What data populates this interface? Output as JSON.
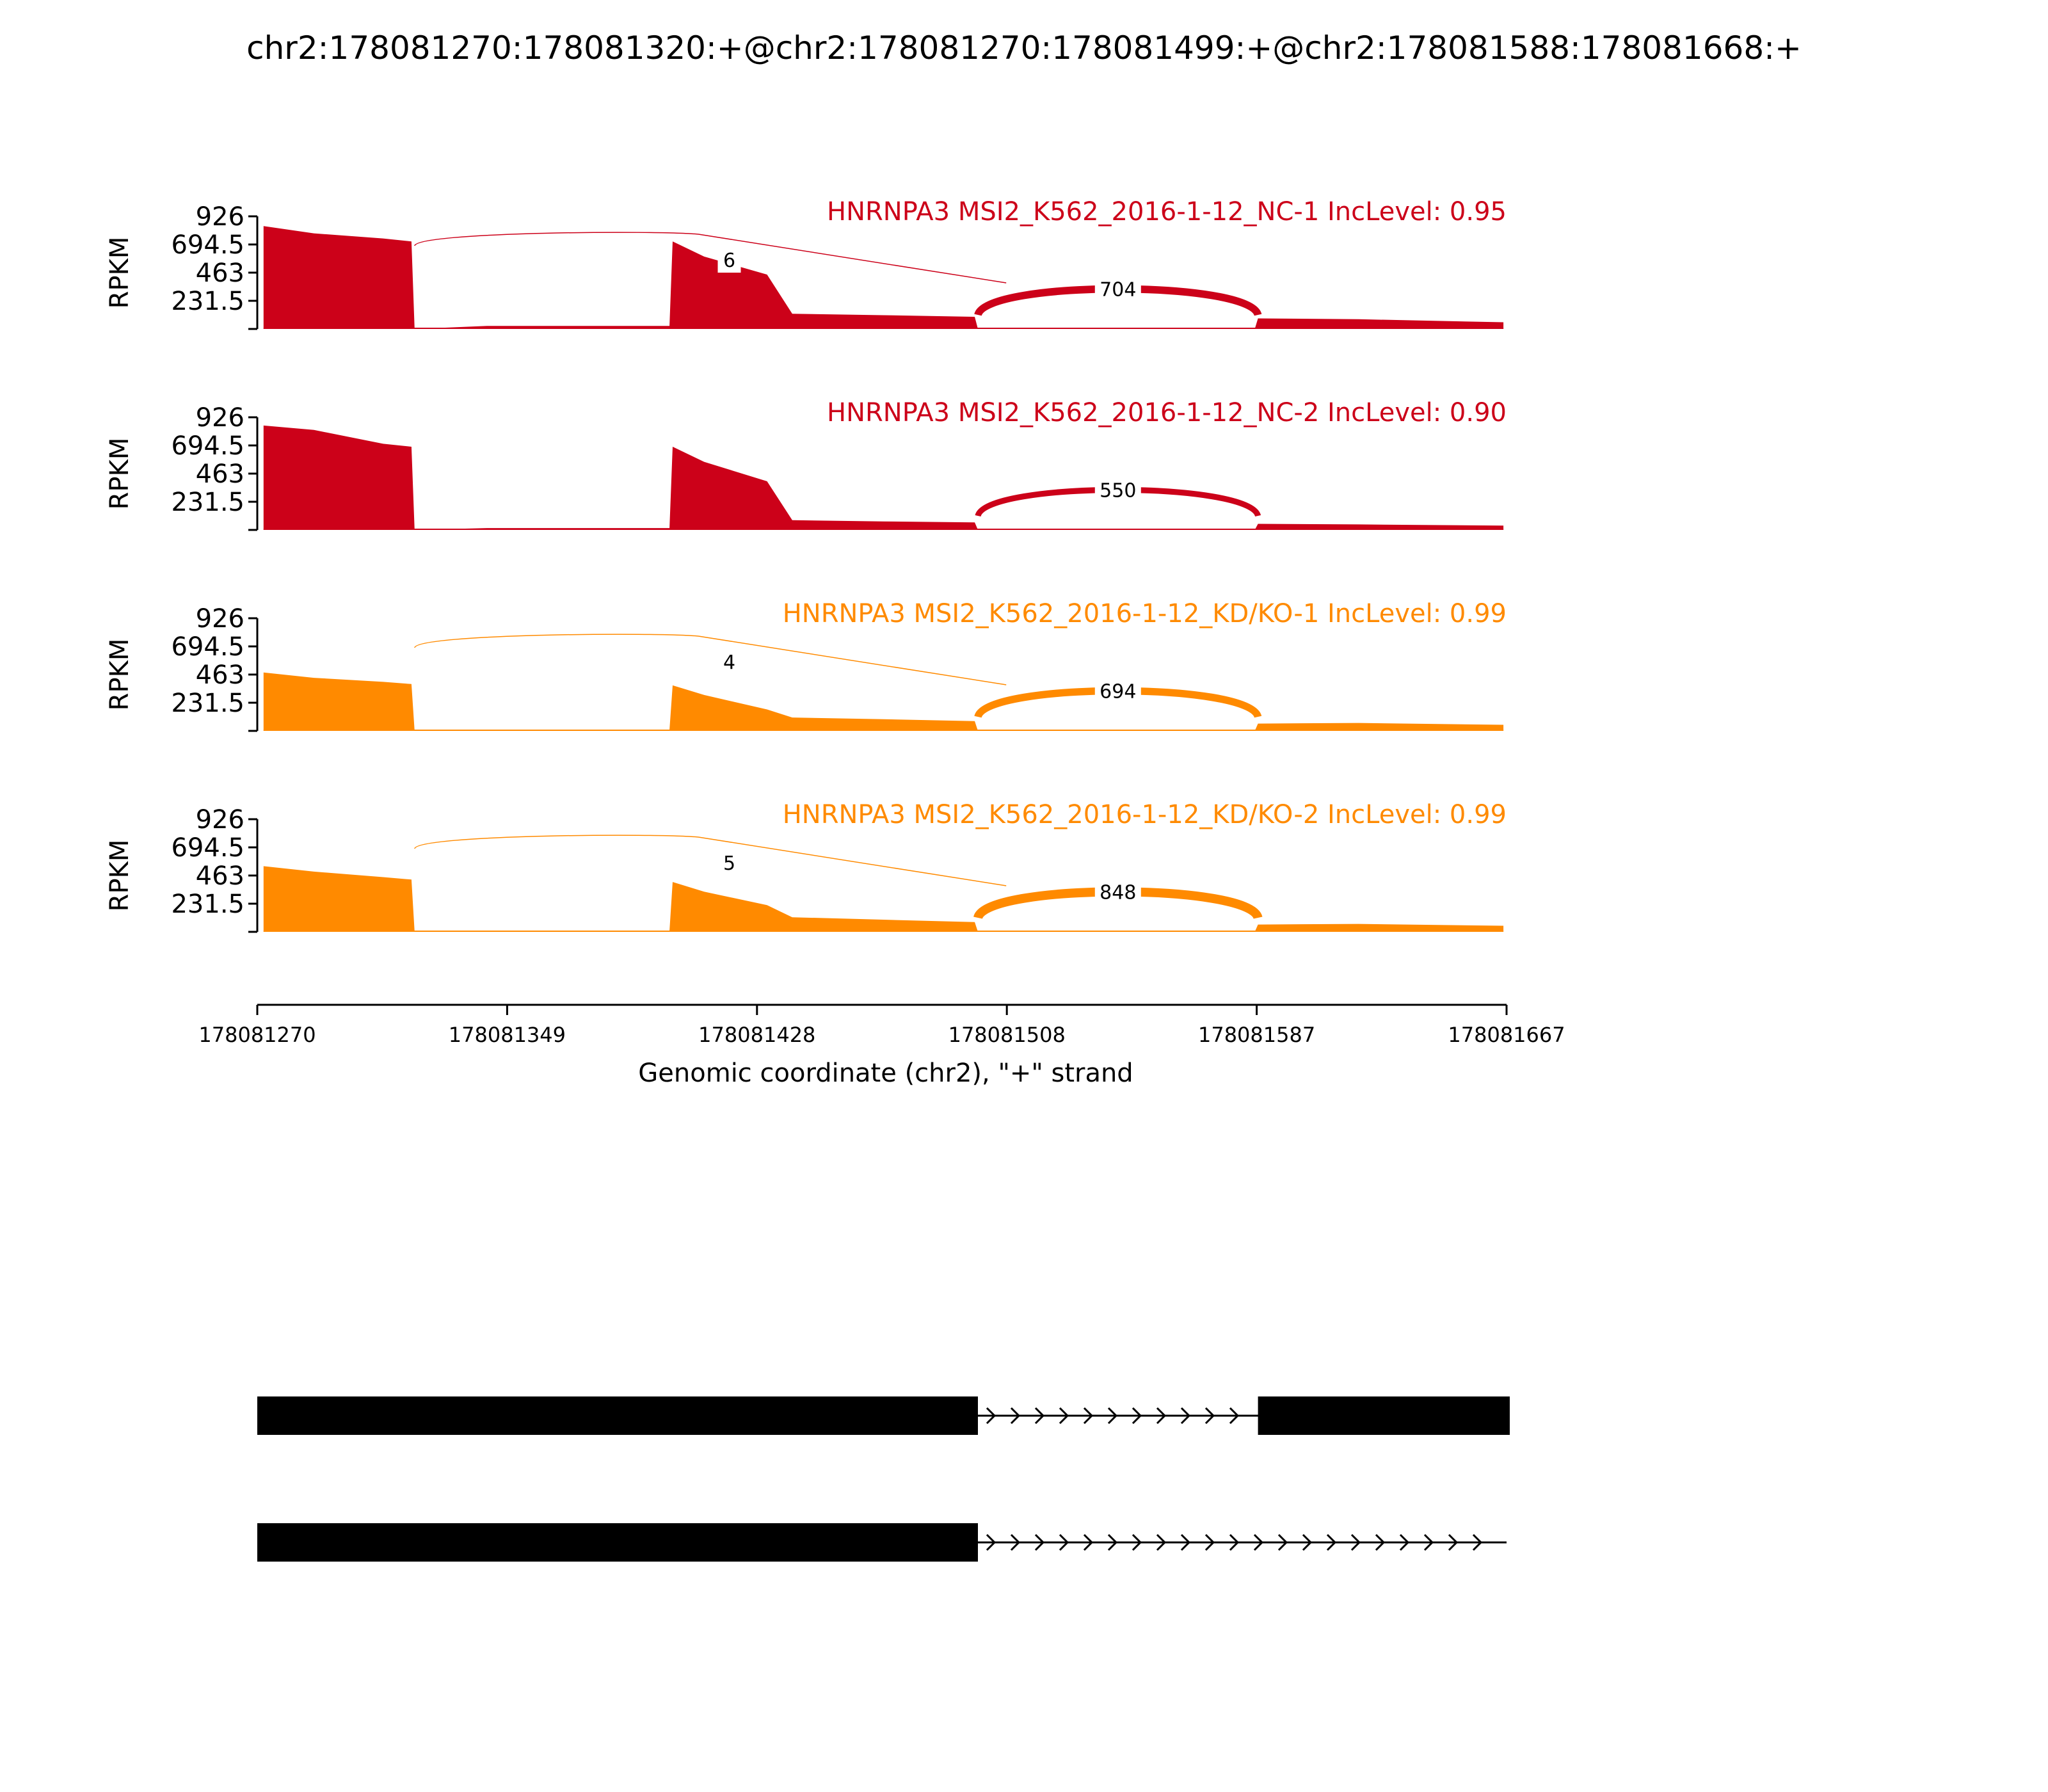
{
  "title": "chr2:178081270:178081320:+@chr2:178081270:178081499:+@chr2:178081588:178081668:+",
  "colors": {
    "NC": "#cc0119",
    "KD": "#ff8a00",
    "axis": "#000000",
    "gene": "#000000"
  },
  "chart_data": {
    "type": "area",
    "title": "chr2:178081270:178081320:+@chr2:178081270:178081499:+@chr2:178081588:178081668:+",
    "ylabel": "RPKM",
    "xlabel": "Genomic coordinate (chr2), \"+\" strand",
    "xlim": [
      178081270,
      178081667
    ],
    "xticks": [
      "178081270",
      "178081349",
      "178081428",
      "178081508",
      "178081587",
      "178081667"
    ],
    "xtick_values": [
      178081270,
      178081349,
      178081428,
      178081508,
      178081587,
      178081667
    ],
    "ylim": [
      0,
      926
    ],
    "yticks": [
      "926",
      "694.5",
      "463",
      "231.5"
    ],
    "ytick_values": [
      926,
      694.5,
      463,
      231.5
    ],
    "samples": [
      {
        "label": "HNRNPA3 MSI2_K562_2016-1-12_NC-1 IncLevel: 0.95",
        "group": "NC",
        "coverage": [
          {
            "x": 178081272,
            "y": 846
          },
          {
            "x": 178081288,
            "y": 786
          },
          {
            "x": 178081310,
            "y": 744
          },
          {
            "x": 178081319,
            "y": 720
          },
          {
            "x": 178081320,
            "y": 0
          },
          {
            "x": 178081343,
            "y": 25
          },
          {
            "x": 178081401,
            "y": 25
          },
          {
            "x": 178081402,
            "y": 720
          },
          {
            "x": 178081412,
            "y": 595
          },
          {
            "x": 178081432,
            "y": 447
          },
          {
            "x": 178081440,
            "y": 125
          },
          {
            "x": 178081469,
            "y": 113
          },
          {
            "x": 178081498,
            "y": 100
          },
          {
            "x": 178081499,
            "y": 0
          },
          {
            "x": 178081587,
            "y": 0
          },
          {
            "x": 178081588,
            "y": 87
          },
          {
            "x": 178081620,
            "y": 80
          },
          {
            "x": 178081666,
            "y": 55
          }
        ],
        "junctions": [
          {
            "label": "6",
            "start": 178081320,
            "end": 178081508,
            "path": "low"
          },
          {
            "label": "704",
            "start": 178081499,
            "end": 178081588,
            "path": "high"
          }
        ]
      },
      {
        "label": "HNRNPA3 MSI2_K562_2016-1-12_NC-2 IncLevel: 0.90",
        "group": "NC",
        "coverage": [
          {
            "x": 178081272,
            "y": 858
          },
          {
            "x": 178081288,
            "y": 822
          },
          {
            "x": 178081310,
            "y": 708
          },
          {
            "x": 178081319,
            "y": 684
          },
          {
            "x": 178081320,
            "y": 0
          },
          {
            "x": 178081343,
            "y": 15
          },
          {
            "x": 178081401,
            "y": 15
          },
          {
            "x": 178081402,
            "y": 684
          },
          {
            "x": 178081412,
            "y": 560
          },
          {
            "x": 178081432,
            "y": 400
          },
          {
            "x": 178081440,
            "y": 80
          },
          {
            "x": 178081469,
            "y": 70
          },
          {
            "x": 178081498,
            "y": 62
          },
          {
            "x": 178081499,
            "y": 0
          },
          {
            "x": 178081587,
            "y": 0
          },
          {
            "x": 178081588,
            "y": 50
          },
          {
            "x": 178081620,
            "y": 45
          },
          {
            "x": 178081666,
            "y": 35
          }
        ],
        "junctions": [
          {
            "label": "550",
            "start": 178081499,
            "end": 178081588,
            "path": "high"
          }
        ]
      },
      {
        "label": "HNRNPA3 MSI2_K562_2016-1-12_KD/KO-1 IncLevel: 0.99",
        "group": "KD",
        "coverage": [
          {
            "x": 178081272,
            "y": 480
          },
          {
            "x": 178081288,
            "y": 436
          },
          {
            "x": 178081310,
            "y": 403
          },
          {
            "x": 178081319,
            "y": 385
          },
          {
            "x": 178081320,
            "y": 0
          },
          {
            "x": 178081343,
            "y": 10
          },
          {
            "x": 178081401,
            "y": 10
          },
          {
            "x": 178081402,
            "y": 374
          },
          {
            "x": 178081412,
            "y": 295
          },
          {
            "x": 178081432,
            "y": 176
          },
          {
            "x": 178081440,
            "y": 110
          },
          {
            "x": 178081469,
            "y": 96
          },
          {
            "x": 178081498,
            "y": 80
          },
          {
            "x": 178081499,
            "y": 0
          },
          {
            "x": 178081587,
            "y": 0
          },
          {
            "x": 178081588,
            "y": 60
          },
          {
            "x": 178081620,
            "y": 65
          },
          {
            "x": 178081666,
            "y": 50
          }
        ],
        "junctions": [
          {
            "label": "4",
            "start": 178081320,
            "end": 178081508,
            "path": "low"
          },
          {
            "label": "694",
            "start": 178081499,
            "end": 178081588,
            "path": "high"
          }
        ]
      },
      {
        "label": "HNRNPA3 MSI2_K562_2016-1-12_KD/KO-2 IncLevel: 0.99",
        "group": "KD",
        "coverage": [
          {
            "x": 178081272,
            "y": 540
          },
          {
            "x": 178081288,
            "y": 495
          },
          {
            "x": 178081310,
            "y": 450
          },
          {
            "x": 178081319,
            "y": 430
          },
          {
            "x": 178081320,
            "y": 0
          },
          {
            "x": 178081343,
            "y": 10
          },
          {
            "x": 178081401,
            "y": 10
          },
          {
            "x": 178081402,
            "y": 410
          },
          {
            "x": 178081412,
            "y": 330
          },
          {
            "x": 178081432,
            "y": 220
          },
          {
            "x": 178081440,
            "y": 120
          },
          {
            "x": 178081469,
            "y": 100
          },
          {
            "x": 178081498,
            "y": 80
          },
          {
            "x": 178081499,
            "y": 0
          },
          {
            "x": 178081587,
            "y": 0
          },
          {
            "x": 178081588,
            "y": 60
          },
          {
            "x": 178081620,
            "y": 65
          },
          {
            "x": 178081666,
            "y": 50
          }
        ],
        "junctions": [
          {
            "label": "5",
            "start": 178081320,
            "end": 178081508,
            "path": "low"
          },
          {
            "label": "848",
            "start": 178081499,
            "end": 178081588,
            "path": "high"
          }
        ]
      }
    ],
    "isoforms": [
      {
        "exons": [
          [
            178081270,
            178081499
          ],
          [
            178081588,
            178081668
          ]
        ]
      },
      {
        "exons": [
          [
            178081270,
            178081499
          ]
        ]
      }
    ]
  }
}
